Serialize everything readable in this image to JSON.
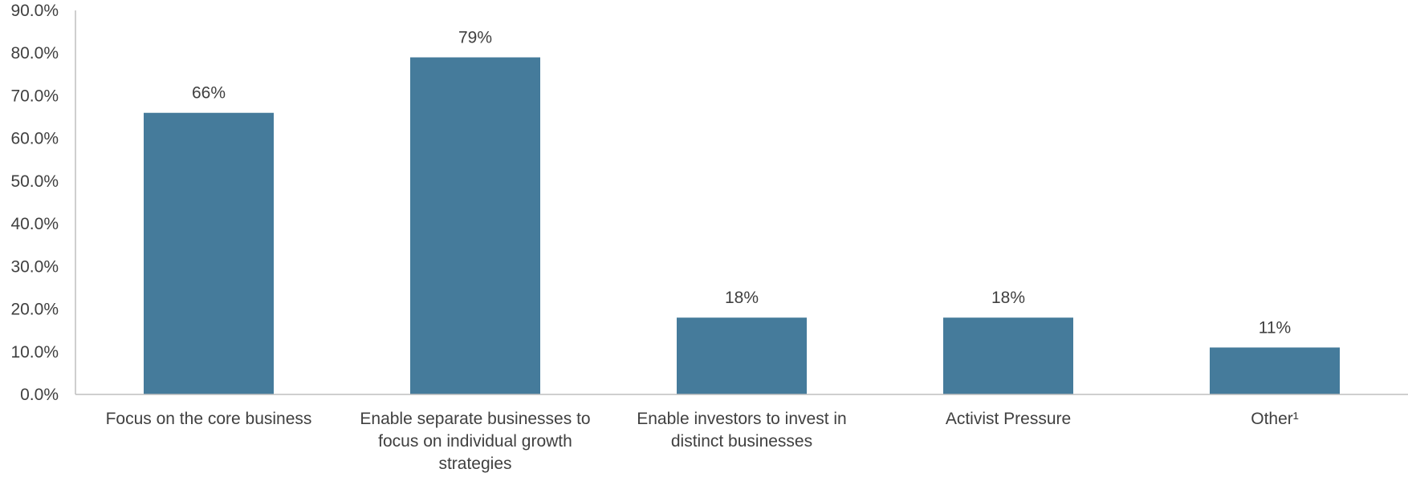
{
  "chart_data": {
    "type": "bar",
    "title": "",
    "xlabel": "",
    "ylabel": "",
    "categories": [
      "Focus on the core business",
      "Enable separate businesses to focus on individual growth strategies",
      "Enable investors to invest in distinct businesses",
      "Activist Pressure",
      "Other¹"
    ],
    "values": [
      66,
      79,
      18,
      18,
      11
    ],
    "data_labels": [
      "66%",
      "79%",
      "18%",
      "18%",
      "11%"
    ],
    "ylim": [
      0,
      90
    ],
    "y_ticks": [
      0,
      10,
      20,
      30,
      40,
      50,
      60,
      70,
      80,
      90
    ],
    "y_tick_labels": [
      "0.0%",
      "10.0%",
      "20.0%",
      "30.0%",
      "40.0%",
      "50.0%",
      "60.0%",
      "70.0%",
      "80.0%",
      "90.0%"
    ],
    "grid": false,
    "legend": "none",
    "colors": {
      "bar": "#457B9B",
      "axis": "#BFBFBF",
      "text": "#404040"
    }
  }
}
